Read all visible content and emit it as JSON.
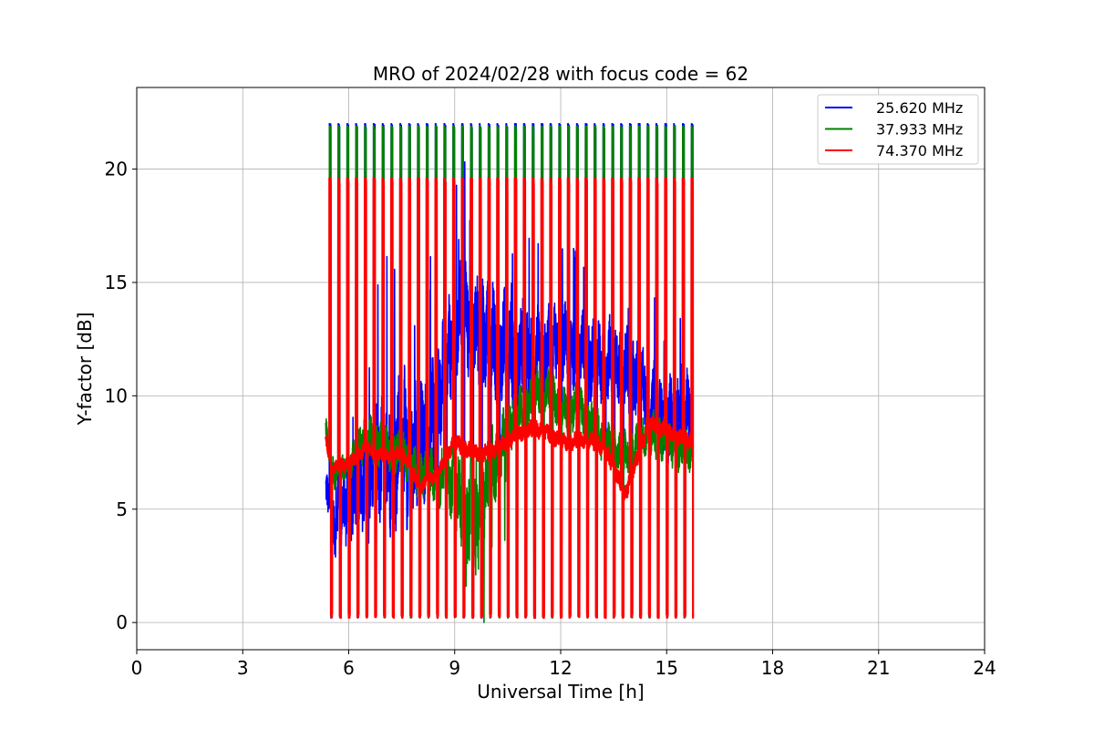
{
  "chart_data": {
    "type": "line",
    "title": "MRO of 2024/02/28 with focus code = 62",
    "xlabel": "Universal Time [h]",
    "ylabel": "Y-factor [dB]",
    "xlim": [
      0,
      24
    ],
    "ylim": [
      -1.2,
      23.6
    ],
    "xticks": [
      0,
      3,
      6,
      9,
      12,
      15,
      18,
      21,
      24
    ],
    "yticks": [
      0,
      5,
      10,
      15,
      20
    ],
    "grid": true,
    "legend_position": "top-right",
    "calibration": {
      "start": 5.45,
      "end": 15.75,
      "period": 0.25,
      "pulse_width": 0.08,
      "peak": [
        22.0,
        21.9,
        19.6
      ],
      "floor": 0.2
    },
    "series": [
      {
        "name": "25.620 MHz",
        "color": "#0000ff",
        "baseline": [
          [
            5.35,
            5.8
          ],
          [
            5.6,
            4.2
          ],
          [
            6.0,
            5.5
          ],
          [
            6.5,
            6.2
          ],
          [
            7.0,
            7.2
          ],
          [
            7.5,
            7.5
          ],
          [
            8.0,
            7.6
          ],
          [
            8.5,
            9.5
          ],
          [
            8.7,
            11.0
          ],
          [
            9.0,
            12.5
          ],
          [
            9.2,
            14.0
          ],
          [
            9.5,
            13.0
          ],
          [
            10.0,
            12.5
          ],
          [
            10.5,
            12.0
          ],
          [
            11.0,
            11.5
          ],
          [
            11.5,
            12.0
          ],
          [
            12.0,
            12.5
          ],
          [
            12.5,
            12.0
          ],
          [
            13.0,
            11.5
          ],
          [
            13.5,
            11.5
          ],
          [
            14.0,
            11.0
          ],
          [
            14.5,
            10.0
          ],
          [
            15.0,
            9.0
          ],
          [
            15.5,
            9.5
          ],
          [
            15.75,
            9.0
          ]
        ],
        "noise": [
          0.8,
          1.0,
          1.5,
          2.0,
          2.5,
          2.8,
          2.5,
          2.3,
          2.0,
          2.0,
          2.0,
          2.0,
          2.0,
          2.0,
          1.8,
          1.5,
          1.3,
          1.5,
          1.5,
          1.5,
          1.5,
          1.5,
          1.5,
          1.5,
          1.5
        ]
      },
      {
        "name": "37.933 MHz",
        "color": "#008000",
        "baseline": [
          [
            5.35,
            8.5
          ],
          [
            5.6,
            6.5
          ],
          [
            6.0,
            7.0
          ],
          [
            6.5,
            8.2
          ],
          [
            7.0,
            7.8
          ],
          [
            7.5,
            7.5
          ],
          [
            8.0,
            6.5
          ],
          [
            8.5,
            6.5
          ],
          [
            9.0,
            6.0
          ],
          [
            9.3,
            5.0
          ],
          [
            9.6,
            4.5
          ],
          [
            10.0,
            6.5
          ],
          [
            10.5,
            8.5
          ],
          [
            11.0,
            9.5
          ],
          [
            11.5,
            10.5
          ],
          [
            12.0,
            9.5
          ],
          [
            12.5,
            9.5
          ],
          [
            13.0,
            8.5
          ],
          [
            13.5,
            7.5
          ],
          [
            14.0,
            7.5
          ],
          [
            14.5,
            8.5
          ],
          [
            15.0,
            8.0
          ],
          [
            15.5,
            7.5
          ],
          [
            15.75,
            7.5
          ]
        ],
        "noise": [
          0.5,
          0.5,
          0.6,
          0.8,
          0.8,
          0.8,
          0.8,
          1.0,
          1.2,
          1.8,
          2.0,
          1.5,
          1.0,
          1.0,
          0.8,
          0.8,
          0.8,
          0.8,
          0.8,
          0.8,
          0.8,
          0.8,
          0.8,
          0.8
        ]
      },
      {
        "name": "74.370 MHz",
        "color": "#ff0000",
        "baseline": [
          [
            5.35,
            8.2
          ],
          [
            5.5,
            6.8
          ],
          [
            6.0,
            7.0
          ],
          [
            6.5,
            7.7
          ],
          [
            7.0,
            7.3
          ],
          [
            7.5,
            7.5
          ],
          [
            8.0,
            6.0
          ],
          [
            8.5,
            6.5
          ],
          [
            9.0,
            8.0
          ],
          [
            9.5,
            7.5
          ],
          [
            10.0,
            7.5
          ],
          [
            10.5,
            8.0
          ],
          [
            11.0,
            8.5
          ],
          [
            11.5,
            8.5
          ],
          [
            12.0,
            8.0
          ],
          [
            12.5,
            8.0
          ],
          [
            13.0,
            8.0
          ],
          [
            13.5,
            7.0
          ],
          [
            13.8,
            5.5
          ],
          [
            14.0,
            6.5
          ],
          [
            14.5,
            8.8
          ],
          [
            15.0,
            8.5
          ],
          [
            15.5,
            8.0
          ],
          [
            15.75,
            8.0
          ]
        ],
        "noise": [
          0.2,
          0.2,
          0.25,
          0.25,
          0.25,
          0.25,
          0.25,
          0.25,
          0.3,
          0.3,
          0.3,
          0.3,
          0.3,
          0.3,
          0.3,
          0.3,
          0.3,
          0.3,
          0.3,
          0.3,
          0.3,
          0.3,
          0.3,
          0.3
        ]
      }
    ]
  }
}
